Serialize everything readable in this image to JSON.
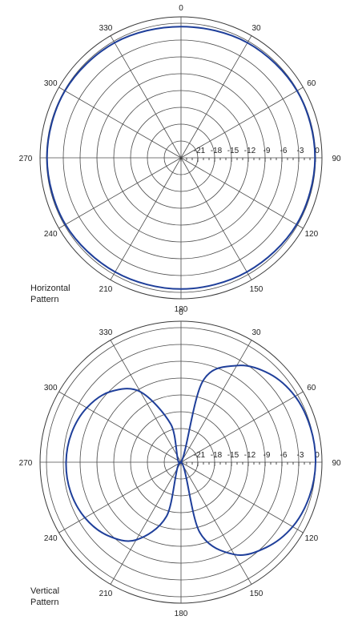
{
  "chart_data": [
    {
      "type": "polar",
      "title": "Horizontal Pattern",
      "title_lines": [
        "Horizontal",
        "Pattern"
      ],
      "angle_labels": [
        "0",
        "30",
        "60",
        "90",
        "120",
        "150",
        "180",
        "210",
        "240",
        "270",
        "300",
        "330"
      ],
      "angle_values": [
        0,
        30,
        60,
        90,
        120,
        150,
        180,
        210,
        240,
        270,
        300,
        330
      ],
      "radial_labels": [
        "-21",
        "-18",
        "-15",
        "-12",
        "-9",
        "-6",
        "-3",
        "0"
      ],
      "radial_values": [
        -21,
        -18,
        -15,
        -12,
        -9,
        -6,
        -3,
        0
      ],
      "rlim": [
        -24,
        0
      ],
      "line_color": "#1f3f9a",
      "series": [
        {
          "theta": [
            0,
            30,
            60,
            90,
            120,
            150,
            180,
            210,
            240,
            270,
            300,
            330
          ],
          "r": [
            -0.6,
            -0.3,
            -0.1,
            -0.1,
            -0.2,
            -0.5,
            -0.6,
            -0.5,
            -0.2,
            -0.1,
            -0.1,
            -0.3
          ]
        }
      ]
    },
    {
      "type": "polar",
      "title": "Vertical Pattern",
      "title_lines": [
        "Vertical",
        "Pattern"
      ],
      "angle_labels": [
        "0",
        "30",
        "60",
        "90",
        "120",
        "150",
        "180",
        "210",
        "240",
        "270",
        "300",
        "330"
      ],
      "angle_values": [
        0,
        30,
        60,
        90,
        120,
        150,
        180,
        210,
        240,
        270,
        300,
        330
      ],
      "radial_labels": [
        "-21",
        "-18",
        "-15",
        "-12",
        "-9",
        "-6",
        "-3",
        "0"
      ],
      "radial_values": [
        -21,
        -18,
        -15,
        -12,
        -9,
        -6,
        -3,
        0
      ],
      "rlim": [
        -24,
        0
      ],
      "line_color": "#1f3f9a",
      "series": [
        {
          "theta": [
            0,
            15,
            30,
            45,
            60,
            75,
            90,
            105,
            120,
            135,
            150,
            165,
            180,
            195,
            210,
            225,
            240,
            255,
            270,
            285,
            300,
            315,
            330,
            345
          ],
          "r": [
            -24,
            -9.1,
            -4.1,
            -1.7,
            -0.5,
            -0.1,
            0,
            -0.3,
            -1,
            -2.5,
            -5,
            -11,
            -24,
            -14,
            -8,
            -5.5,
            -4.2,
            -3.6,
            -3.5,
            -3.8,
            -4.6,
            -6.2,
            -9.5,
            -17
          ]
        }
      ]
    }
  ]
}
